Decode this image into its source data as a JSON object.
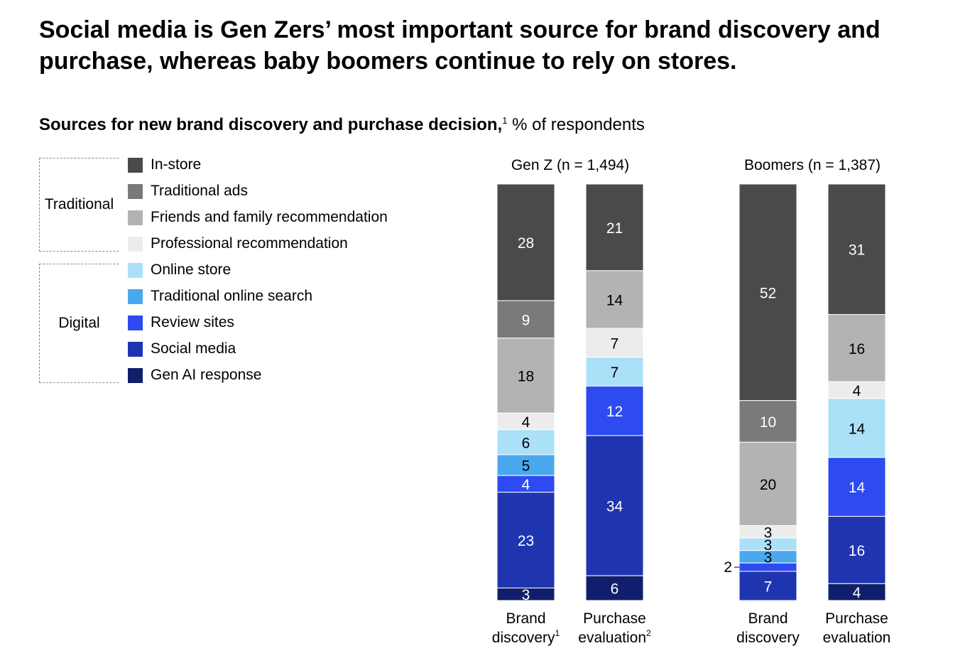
{
  "title": "Social media is Gen Zers’ most important source for brand discovery and purchase, whereas baby boomers continue to rely on stores.",
  "subtitle_bold": "Sources for new brand discovery and purchase decision,",
  "subtitle_sup": "1",
  "subtitle_rest": " % of respondents",
  "legend_groups": [
    {
      "label": "Traditional"
    },
    {
      "label": "Digital"
    }
  ],
  "legend": [
    {
      "name": "In-store",
      "color": "#4a4a4a"
    },
    {
      "name": "Traditional ads",
      "color": "#7a7a7a"
    },
    {
      "name": "Friends and family recommendation",
      "color": "#b3b3b3"
    },
    {
      "name": "Professional recommendation",
      "color": "#ececec"
    },
    {
      "name": "Online store",
      "color": "#abe0f9"
    },
    {
      "name": "Traditional online search",
      "color": "#4aa8ee"
    },
    {
      "name": "Review sites",
      "color": "#2d4bf0"
    },
    {
      "name": "Social media",
      "color": "#1f35b0"
    },
    {
      "name": "Gen AI response",
      "color": "#101f6b"
    }
  ],
  "chart_data": {
    "type": "bar",
    "stacked": true,
    "series_names": [
      "In-store",
      "Traditional ads",
      "Friends and family recommendation",
      "Professional recommendation",
      "Online store",
      "Traditional online search",
      "Review sites",
      "Social media",
      "Gen AI response"
    ],
    "panels": [
      {
        "title": "Gen Z (n = 1,494)",
        "bars": [
          {
            "label": "Brand",
            "label2": "discovery",
            "sup": "1",
            "values": [
              28,
              9,
              18,
              4,
              6,
              5,
              4,
              23,
              3
            ]
          },
          {
            "label": "Purchase",
            "label2": "evaluation",
            "sup": "2",
            "values": [
              21,
              0,
              14,
              7,
              7,
              0,
              12,
              34,
              6
            ]
          }
        ]
      },
      {
        "title": "Boomers (n = 1,387)",
        "bars": [
          {
            "label": "Brand",
            "label2": "discovery",
            "sup": "",
            "values": [
              52,
              10,
              20,
              3,
              3,
              3,
              2,
              7,
              0
            ]
          },
          {
            "label": "Purchase",
            "label2": "evaluation",
            "sup": "",
            "values": [
              31,
              0,
              16,
              4,
              14,
              0,
              14,
              16,
              4
            ]
          }
        ]
      }
    ]
  }
}
